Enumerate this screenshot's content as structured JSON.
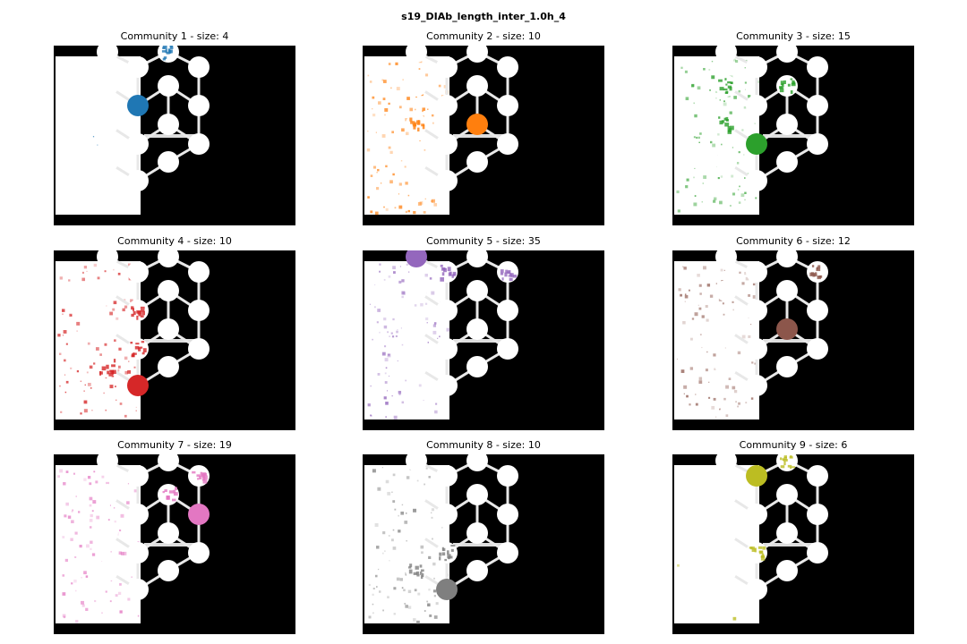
{
  "figure": {
    "title": "s19_DIAb_length_inter_1.0h_4"
  },
  "chart_data": {
    "type": "image-grid",
    "title": "s19_DIAb_length_inter_1.0h_4",
    "panels": [
      {
        "title": "Community 1 - size: 4",
        "community": 1,
        "size": 4,
        "color": "#1f77b4",
        "colormap_name": "blue",
        "highlight_wells": [
          5,
          2
        ]
      },
      {
        "title": "Community 2 - size: 10",
        "community": 2,
        "size": 10,
        "color": "#ff7f0e",
        "colormap_name": "orange",
        "highlight_wells": [
          10,
          8
        ]
      },
      {
        "title": "Community 3 - size: 15",
        "community": 3,
        "size": 15,
        "color": "#2ca02c",
        "colormap_name": "green",
        "highlight_wells": [
          9,
          8,
          4,
          6
        ]
      },
      {
        "title": "Community 4 - size: 10",
        "community": 4,
        "size": 10,
        "color": "#d62728",
        "colormap_name": "red",
        "highlight_wells": [
          13,
          12,
          5,
          9
        ]
      },
      {
        "title": "Community 5 - size: 35",
        "community": 5,
        "size": 35,
        "color": "#9467bd",
        "colormap_name": "purple",
        "highlight_wells": [
          0,
          1,
          3
        ]
      },
      {
        "title": "Community 6 - size: 12",
        "community": 6,
        "size": 12,
        "color": "#8c564b",
        "colormap_name": "brown",
        "highlight_wells": [
          10,
          3
        ]
      },
      {
        "title": "Community 7 - size: 19",
        "community": 7,
        "size": 19,
        "color": "#e377c2",
        "colormap_name": "pink",
        "highlight_wells": [
          7,
          3,
          6
        ]
      },
      {
        "title": "Community 8 - size: 10",
        "community": 8,
        "size": 10,
        "color": "#7f7f7f",
        "colormap_name": "gray",
        "highlight_wells": [
          13,
          12,
          9
        ]
      },
      {
        "title": "Community 9 - size: 6",
        "community": 9,
        "size": 6,
        "color": "#bcbd22",
        "colormap_name": "olive",
        "highlight_wells": [
          1,
          2,
          9
        ]
      }
    ]
  }
}
